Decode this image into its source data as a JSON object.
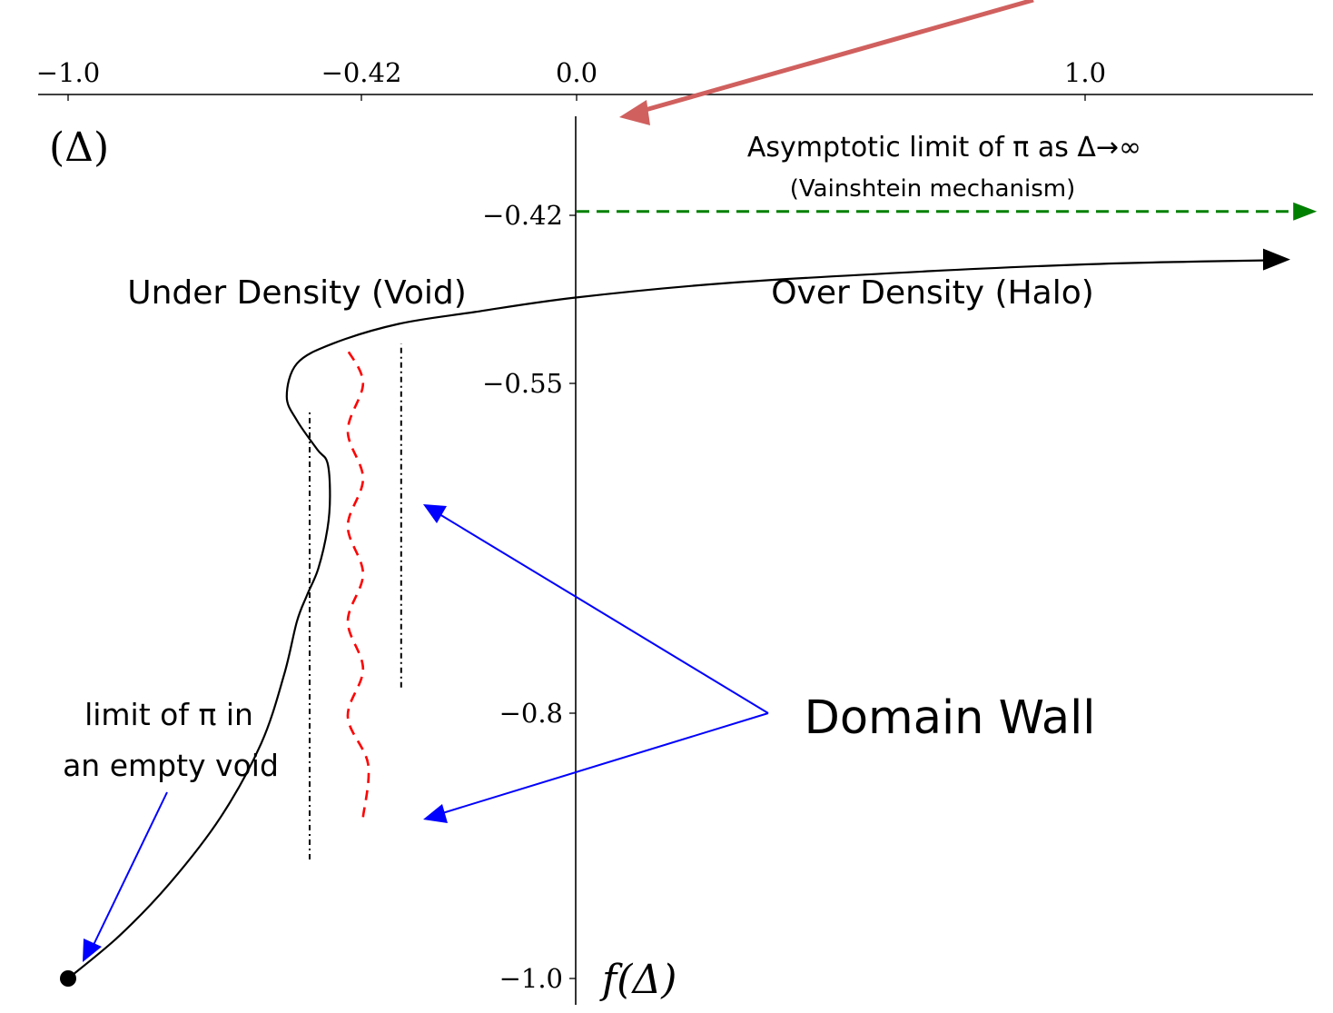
{
  "chart_data": {
    "type": "line",
    "title": "",
    "xlabel": "(Δ)",
    "ylabel": "f(Δ)",
    "x_ticks": [
      "−1.0",
      "−0.42",
      "0.0",
      "1.0"
    ],
    "y_ticks": [
      "−0.42",
      "−0.55",
      "−0.8",
      "−1.0"
    ],
    "regions": {
      "left": "Under Density (Void)",
      "right": "Over Density (Halo)"
    },
    "annotations": {
      "asymptote_line1": "Asymptotic limit of π as Δ→∞",
      "asymptote_line2": "(Vainshtein mechanism)",
      "void_limit_line1": "limit of π in",
      "void_limit_line2": "an empty void",
      "domain_wall": "Domain Wall"
    },
    "asymptote_y": -0.42,
    "series": [
      {
        "style": "solid-black",
        "color": "#000000",
        "points": [
          [
            -1.0,
            -1.0
          ],
          [
            -0.9,
            -0.968
          ],
          [
            -0.8,
            -0.928
          ],
          [
            -0.7,
            -0.878
          ],
          [
            -0.62,
            -0.822
          ],
          [
            -0.575,
            -0.77
          ],
          [
            -0.55,
            -0.73
          ],
          [
            -0.53,
            -0.71
          ],
          [
            -0.508,
            -0.69
          ],
          [
            -0.49,
            -0.66
          ],
          [
            -0.485,
            -0.635
          ],
          [
            -0.49,
            -0.61
          ],
          [
            -0.51,
            -0.6
          ],
          [
            -0.55,
            -0.578
          ],
          [
            -0.57,
            -0.56
          ],
          [
            -0.55,
            -0.535
          ],
          [
            -0.48,
            -0.52
          ],
          [
            -0.35,
            -0.505
          ],
          [
            -0.2,
            -0.496
          ],
          [
            0.0,
            -0.485
          ],
          [
            0.3,
            -0.474
          ],
          [
            0.7,
            -0.465
          ],
          [
            1.0,
            -0.46
          ],
          [
            1.2,
            -0.458
          ],
          [
            1.35,
            -0.457
          ]
        ]
      },
      {
        "style": "dashed-red",
        "color": "#ff0000",
        "points": [
          [
            -0.42,
            -0.878
          ],
          [
            -0.41,
            -0.838
          ],
          [
            -0.45,
            -0.802
          ],
          [
            -0.42,
            -0.766
          ],
          [
            -0.45,
            -0.73
          ],
          [
            -0.42,
            -0.694
          ],
          [
            -0.45,
            -0.658
          ],
          [
            -0.42,
            -0.622
          ],
          [
            -0.45,
            -0.586
          ],
          [
            -0.42,
            -0.55
          ],
          [
            -0.45,
            -0.525
          ]
        ]
      },
      {
        "style": "dashdot-black",
        "color": "#000000",
        "points": [
          [
            -0.525,
            -0.91
          ],
          [
            -0.525,
            -0.57
          ]
        ]
      },
      {
        "style": "dashdot-black",
        "color": "#000000",
        "points": [
          [
            -0.345,
            -0.78
          ],
          [
            -0.345,
            -0.52
          ]
        ]
      },
      {
        "style": "dashed-green",
        "color": "#008000",
        "points": [
          [
            0.0,
            -0.42
          ],
          [
            1.42,
            -0.42
          ]
        ]
      }
    ],
    "colors": {
      "annotation_arrow": "#d0605e",
      "domain_wall_arrow": "#0000ff",
      "asymptote": "#008000",
      "wall_oscillation": "#ff0000",
      "curve": "#000000"
    }
  }
}
